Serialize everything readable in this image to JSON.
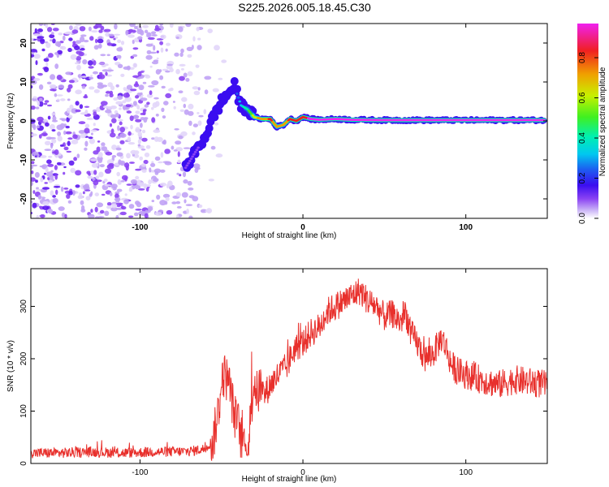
{
  "title": "S225.2026.005.18.45.C30",
  "colors": {
    "snr_line": "#e8302c",
    "axis": "#000000",
    "background": "#ffffff",
    "spectrum_palette": [
      "#ffffff",
      "#c9b5f5",
      "#8b44f3",
      "#3a0df0",
      "#1d5cf0",
      "#00c8f0",
      "#00f0b0",
      "#40f020",
      "#c8f000",
      "#f0a000",
      "#f02020",
      "#f020f0"
    ]
  },
  "chart_data": [
    {
      "type": "heatmap",
      "name": "spectrogram",
      "title": "S225.2026.005.18.45.C30",
      "xlabel": "Height of straight line (km)",
      "ylabel": "Frequency (Hz)",
      "xlim": [
        -167,
        150
      ],
      "ylim": [
        -25,
        25
      ],
      "xticks": [
        -100,
        0,
        100
      ],
      "xtick_labels": [
        "-100",
        "0",
        "100"
      ],
      "yticks": [
        -20,
        -10,
        0,
        10,
        20
      ],
      "ytick_labels": [
        "-20",
        "-10",
        "0",
        "10",
        "20"
      ],
      "ridge": {
        "description": "main spectral ridge (frequency vs height)",
        "x": [
          -72,
          -66,
          -60,
          -55,
          -50,
          -46,
          -42,
          -38,
          -34,
          -30,
          -25,
          -20,
          -16,
          -12,
          -8,
          -4,
          0,
          5,
          10,
          20,
          30,
          50,
          80,
          110,
          148
        ],
        "y": [
          -12,
          -8,
          -4,
          1,
          5,
          7,
          9,
          4,
          3,
          1,
          0.5,
          0.5,
          -1.5,
          -1,
          0.5,
          0,
          1,
          0.5,
          0.3,
          0.5,
          0.3,
          0.2,
          0.2,
          0.2,
          0.2
        ],
        "amplitude": [
          0.15,
          0.2,
          0.25,
          0.25,
          0.3,
          0.25,
          0.25,
          0.45,
          0.55,
          0.7,
          0.8,
          0.85,
          0.8,
          0.8,
          0.85,
          0.9,
          0.9,
          0.95,
          0.95,
          0.95,
          0.95,
          0.95,
          0.95,
          0.95,
          0.95
        ]
      },
      "noise_region": {
        "x_range": [
          -167,
          -45
        ],
        "amplitude_range": [
          0.02,
          0.15
        ]
      },
      "colorbar": {
        "label": "Normalized spectral amplitude",
        "range": [
          0.0,
          0.97
        ],
        "ticks": [
          0.0,
          0.2,
          0.4,
          0.6,
          0.8
        ],
        "tick_labels": [
          "0.0",
          "0.2",
          "0.4",
          "0.6",
          "0.8"
        ]
      }
    },
    {
      "type": "line",
      "name": "snr",
      "xlabel": "Height of straight line (km)",
      "ylabel": "SNR (10 * v/v)",
      "xlim": [
        -167,
        150
      ],
      "ylim": [
        0,
        372
      ],
      "xticks": [
        -100,
        0,
        100
      ],
      "xtick_labels": [
        "-100",
        "0",
        "100"
      ],
      "yticks": [
        0,
        100,
        200,
        300
      ],
      "ytick_labels": [
        "0",
        "100",
        "200",
        "300"
      ],
      "series": [
        {
          "name": "SNR",
          "x": [
            -167,
            -150,
            -130,
            -110,
            -90,
            -70,
            -60,
            -55,
            -52,
            -49,
            -46,
            -44,
            -42,
            -40,
            -38,
            -36,
            -34,
            -32,
            -30,
            -28,
            -26,
            -24,
            -22,
            -20,
            -15,
            -10,
            -5,
            0,
            5,
            10,
            15,
            20,
            25,
            30,
            35,
            40,
            45,
            50,
            55,
            60,
            63,
            66,
            70,
            75,
            80,
            85,
            88,
            91,
            95,
            100,
            110,
            120,
            130,
            140,
            150
          ],
          "y": [
            20,
            20,
            22,
            20,
            22,
            23,
            28,
            45,
            100,
            170,
            160,
            130,
            90,
            80,
            50,
            40,
            20,
            90,
            160,
            130,
            150,
            130,
            140,
            150,
            170,
            185,
            220,
            230,
            250,
            260,
            290,
            300,
            310,
            320,
            330,
            310,
            300,
            280,
            285,
            270,
            290,
            250,
            230,
            200,
            210,
            240,
            220,
            190,
            175,
            170,
            160,
            150,
            160,
            155,
            150
          ]
        }
      ]
    }
  ]
}
